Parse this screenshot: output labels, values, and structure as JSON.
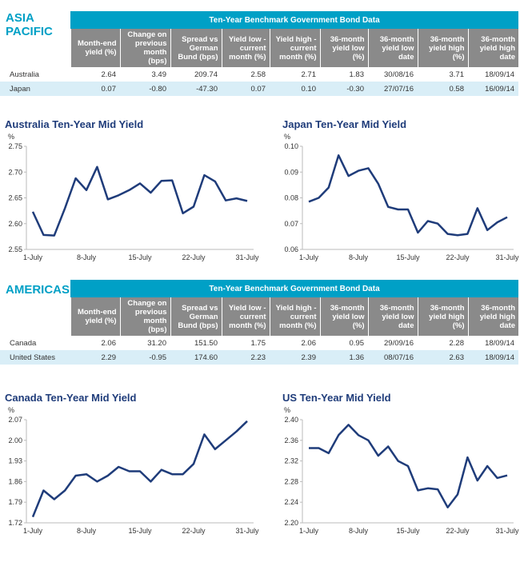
{
  "sections": [
    {
      "heading": "ASIA PACIFIC",
      "table": {
        "title": "Ten-Year Benchmark Government Bond Data",
        "columns": [
          "Month-end yield (%)",
          "Change on previous month (bps)",
          "Spread vs German Bund (bps)",
          "Yield low - current month (%)",
          "Yield high - current month (%)",
          "36-month yield low (%)",
          "36-month yield low date",
          "36-month yield high (%)",
          "36-month yield high date"
        ],
        "rows": [
          [
            "Australia",
            "2.64",
            "3.49",
            "209.74",
            "2.58",
            "2.71",
            "1.83",
            "30/08/16",
            "3.71",
            "18/09/14"
          ],
          [
            "Japan",
            "0.07",
            "-0.80",
            "-47.30",
            "0.07",
            "0.10",
            "-0.30",
            "27/07/16",
            "0.58",
            "16/09/14"
          ]
        ]
      }
    },
    {
      "heading": "AMERICAS",
      "table": {
        "title": "Ten-Year Benchmark Government Bond Data",
        "columns": [
          "Month-end yield (%)",
          "Change on previous month (bps)",
          "Spread vs German Bund (bps)",
          "Yield low - current month (%)",
          "Yield high - current month (%)",
          "36-month yield low (%)",
          "36-month yield low date",
          "36-month yield high (%)",
          "36-month yield high date"
        ],
        "rows": [
          [
            "Canada",
            "2.06",
            "31.20",
            "151.50",
            "1.75",
            "2.06",
            "0.95",
            "29/09/16",
            "2.28",
            "18/09/14"
          ],
          [
            "United States",
            "2.29",
            "-0.95",
            "174.60",
            "2.23",
            "2.39",
            "1.36",
            "08/07/16",
            "2.63",
            "18/09/14"
          ]
        ]
      }
    }
  ],
  "chart_data": [
    {
      "type": "line",
      "title": "Australia Ten-Year Mid Yield",
      "y_unit": "%",
      "color": "#1f3c7a",
      "grid": false,
      "categories": [
        "1-July",
        null,
        null,
        null,
        null,
        "8-July",
        null,
        null,
        null,
        null,
        "15-July",
        null,
        null,
        null,
        null,
        "22-July",
        null,
        null,
        null,
        null,
        "31-July"
      ],
      "values": [
        2.623,
        2.578,
        2.577,
        2.63,
        2.688,
        2.665,
        2.71,
        2.647,
        2.655,
        2.665,
        2.678,
        2.66,
        2.683,
        2.684,
        2.62,
        2.633,
        2.694,
        2.682,
        2.645,
        2.649,
        2.644
      ],
      "ylim": [
        2.55,
        2.75
      ],
      "yticks": [
        2.55,
        {
          "value": 2.6,
          "label": "2.60"
        },
        2.65,
        {
          "value": 2.7,
          "label": "2.70"
        },
        2.75
      ]
    },
    {
      "type": "line",
      "title": "Japan Ten-Year Mid Yield",
      "y_unit": "%",
      "color": "#1f3c7a",
      "grid": false,
      "categories": [
        "1-July",
        null,
        null,
        null,
        null,
        "8-July",
        null,
        null,
        null,
        null,
        "15-July",
        null,
        null,
        null,
        null,
        "22-July",
        null,
        null,
        null,
        null,
        "31-July"
      ],
      "values": [
        0.0785,
        0.08,
        0.084,
        0.0965,
        0.0885,
        0.0905,
        0.0915,
        0.0855,
        0.0765,
        0.0755,
        0.0755,
        0.0665,
        0.071,
        0.07,
        0.066,
        0.0655,
        0.066,
        0.076,
        0.0675,
        0.0705,
        0.0725
      ],
      "ylim": [
        0.06,
        0.1
      ],
      "yticks": [
        0.06,
        0.07,
        0.08,
        0.09,
        {
          "value": 0.1,
          "label": "0.10"
        }
      ]
    },
    {
      "type": "line",
      "title": "Canada Ten-Year Mid Yield",
      "y_unit": "%",
      "color": "#1f3c7a",
      "grid": false,
      "categories": [
        "1-July",
        null,
        null,
        null,
        null,
        "8-July",
        null,
        null,
        null,
        null,
        "15-July",
        null,
        null,
        null,
        null,
        "22-July",
        null,
        null,
        null,
        null,
        "31-July"
      ],
      "values": [
        1.74,
        1.83,
        1.8,
        1.83,
        1.88,
        1.885,
        1.86,
        1.88,
        1.91,
        1.895,
        1.895,
        1.86,
        1.9,
        1.885,
        1.885,
        1.92,
        2.02,
        1.97,
        2.0,
        2.03,
        2.065
      ],
      "ylim": [
        1.72,
        2.07
      ],
      "yticks": [
        1.72,
        1.79,
        1.86,
        1.93,
        {
          "value": 2,
          "label": "2.00"
        },
        2.07
      ]
    },
    {
      "type": "line",
      "title": "US Ten-Year Mid Yield",
      "y_unit": "%",
      "color": "#1f3c7a",
      "grid": false,
      "categories": [
        "1-July",
        null,
        null,
        null,
        null,
        "8-July",
        null,
        null,
        null,
        null,
        "15-July",
        null,
        null,
        null,
        null,
        "22-July",
        null,
        null,
        null,
        null,
        "31-July"
      ],
      "values": [
        2.345,
        2.345,
        2.335,
        2.37,
        2.39,
        2.37,
        2.36,
        2.33,
        2.348,
        2.32,
        2.31,
        2.263,
        2.267,
        2.265,
        2.23,
        2.255,
        2.327,
        2.282,
        2.31,
        2.287,
        2.292
      ],
      "ylim": [
        2.2,
        2.4
      ],
      "yticks": [
        {
          "value": 2.2,
          "label": "2.20"
        },
        2.24,
        2.28,
        2.32,
        2.36,
        {
          "value": 2.4,
          "label": "2.40"
        }
      ]
    }
  ]
}
